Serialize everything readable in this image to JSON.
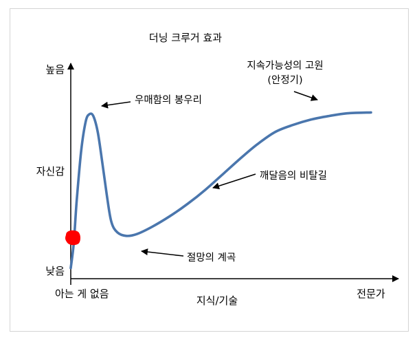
{
  "chart_data": {
    "type": "line",
    "title": "더닝 크루거 효과",
    "xlabel": "지식/기술",
    "ylabel": "자신감",
    "y_ticks": {
      "low": "낮음",
      "high": "높음"
    },
    "x_ticks": {
      "start": "아는 게 없음",
      "end": "전문가"
    },
    "x_range": [
      0,
      100
    ],
    "y_range": [
      0,
      100
    ],
    "series": [
      {
        "color": "#4a76ad",
        "x": [
          0,
          1,
          2,
          3.5,
          5,
          6.2,
          7.5,
          9,
          10.5,
          12,
          13.5,
          15.5,
          18.5,
          22,
          27,
          33,
          39,
          45,
          51,
          57,
          62,
          68,
          74,
          80,
          86,
          92,
          100
        ],
        "y": [
          4,
          18,
          42,
          70,
          86,
          90,
          89,
          80,
          63,
          45,
          30,
          24,
          22,
          23,
          27,
          33,
          40,
          48,
          57,
          66,
          73,
          80,
          84,
          87,
          89,
          90.5,
          91
        ]
      }
    ],
    "annotations": [
      {
        "text": "우매함의 봉우리",
        "x": 6.5,
        "y": 90
      },
      {
        "text": "절망의 계곡",
        "x": 15,
        "y": 22.5
      },
      {
        "text": "깨달음의 비탈길",
        "x": 47.5,
        "y": 46
      },
      {
        "text": "지속가능성의 고원",
        "text2": "(안정기)",
        "x": 82,
        "y": 88
      }
    ],
    "marker": {
      "shape": "red-blob",
      "x": 0,
      "y": 21,
      "color": "#ff0000"
    },
    "grid": false,
    "legend": "none"
  }
}
